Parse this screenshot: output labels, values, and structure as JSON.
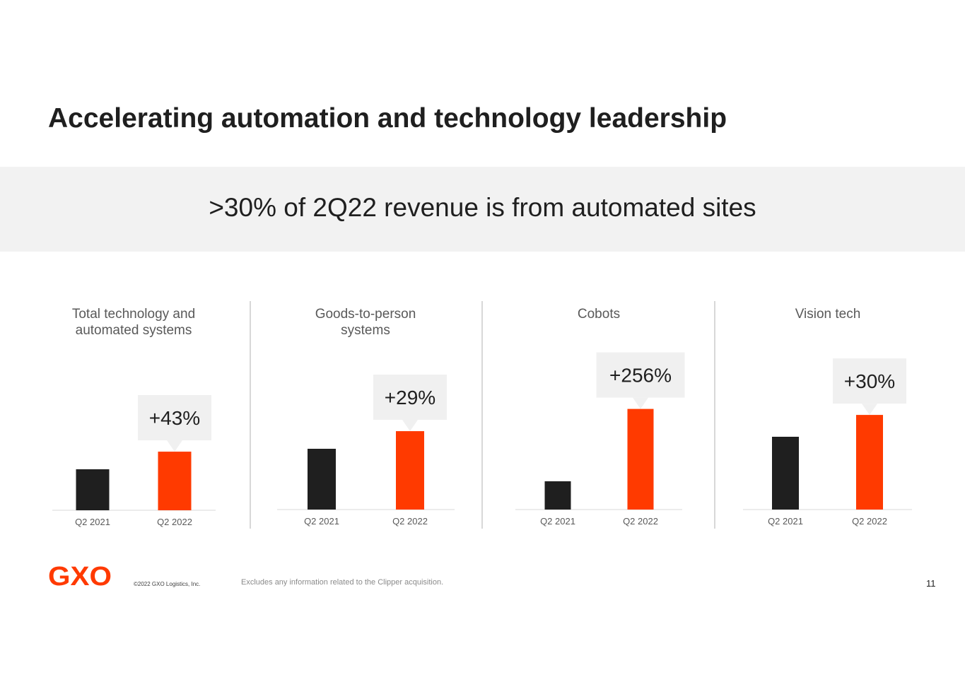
{
  "slide": {
    "title": "Accelerating automation and technology leadership",
    "banner": ">30% of 2Q22 revenue is from automated sites",
    "copyright": "©2022 GXO Logistics, Inc.",
    "footnote": "Excludes any information related to the Clipper acquisition.",
    "page_number": "11",
    "logo_text": "GXO"
  },
  "colors": {
    "q2_2021": "#1f1f1f",
    "q2_2022": "#ff3a00",
    "callout_bg": "#f0f0f0",
    "logo": "#ff3a00"
  },
  "chart_data": [
    {
      "type": "bar",
      "title": "Total technology and automated systems",
      "categories": [
        "Q2 2021",
        "Q2 2022"
      ],
      "values": [
        100,
        143
      ],
      "annotation": "+43%"
    },
    {
      "type": "bar",
      "title": "Goods-to-person systems",
      "categories": [
        "Q2 2021",
        "Q2 2022"
      ],
      "values": [
        100,
        129
      ],
      "annotation": "+29%"
    },
    {
      "type": "bar",
      "title": "Cobots",
      "categories": [
        "Q2 2021",
        "Q2 2022"
      ],
      "values": [
        100,
        356
      ],
      "annotation": "+256%"
    },
    {
      "type": "bar",
      "title": "Vision tech",
      "categories": [
        "Q2 2021",
        "Q2 2022"
      ],
      "values": [
        100,
        130
      ],
      "annotation": "+30%"
    }
  ]
}
